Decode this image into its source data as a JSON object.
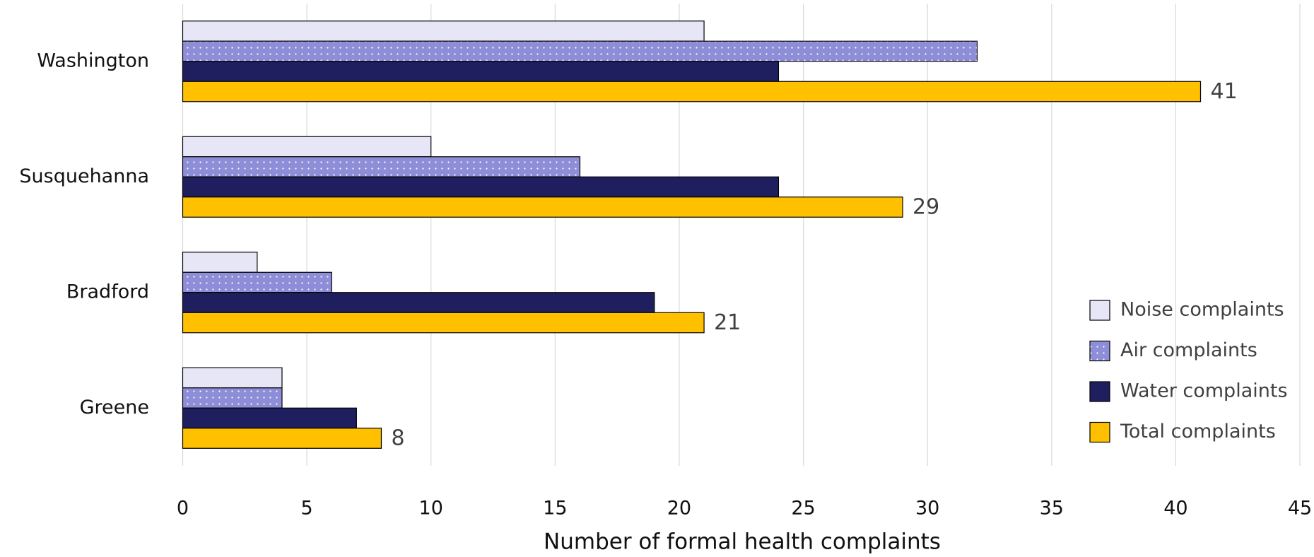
{
  "chart_data": {
    "type": "hbar",
    "xlabel": "Number of formal health complaints",
    "categories": [
      "Washington",
      "Susquehanna",
      "Bradford",
      "Greene"
    ],
    "series": [
      {
        "name": "Noise complaints",
        "color": "#e6e6f7",
        "values": [
          21,
          10,
          3,
          4
        ]
      },
      {
        "name": "Air complaints",
        "color": "#8e8ed8",
        "pattern": "dots",
        "values": [
          32,
          16,
          6,
          4
        ]
      },
      {
        "name": "Water complaints",
        "color": "#1f1f5f",
        "values": [
          24,
          24,
          19,
          7
        ]
      },
      {
        "name": "Total complaints",
        "color": "#ffc000",
        "data_labels": true,
        "values": [
          41,
          29,
          21,
          8
        ]
      }
    ],
    "xlim": [
      0,
      45
    ],
    "xticks": [
      0,
      5,
      10,
      15,
      20,
      25,
      30,
      35,
      40,
      45
    ],
    "grid": true,
    "legend": "lower right"
  }
}
